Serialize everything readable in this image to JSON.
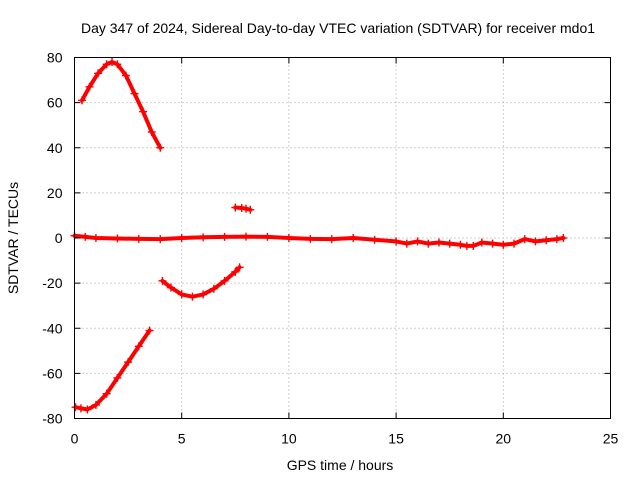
{
  "chart_data": {
    "type": "scatter",
    "title": "Day 347 of 2024, Sidereal Day-to-day VTEC variation (SDTVAR) for receiver mdo1",
    "xlabel": "GPS time / hours",
    "ylabel": "SDTVAR / TECUs",
    "xlim": [
      0,
      25
    ],
    "ylim": [
      -80,
      80
    ],
    "xticks": [
      0,
      5,
      10,
      15,
      20,
      25
    ],
    "yticks": [
      -80,
      -60,
      -40,
      -20,
      0,
      20,
      40,
      60,
      80
    ],
    "grid": true,
    "color": "#ff0000",
    "series": [
      {
        "name": "main-near-zero",
        "x": [
          0,
          0.5,
          1,
          2,
          3,
          4,
          5,
          6,
          7,
          8,
          9,
          10,
          11,
          12,
          13,
          14,
          15,
          15.5,
          16,
          16.5,
          17,
          17.5,
          18,
          18.3,
          18.6,
          19,
          19.5,
          20,
          20.5,
          21,
          21.5,
          22,
          22.5,
          22.8
        ],
        "y": [
          1,
          0.5,
          0,
          -0.2,
          -0.4,
          -0.5,
          0,
          0.3,
          0.5,
          0.6,
          0.5,
          0,
          -0.4,
          -0.5,
          0,
          -0.8,
          -1.5,
          -2.5,
          -1.5,
          -2.5,
          -2,
          -2.5,
          -3,
          -3.5,
          -3.5,
          -2,
          -2.5,
          -3,
          -2.5,
          -0.5,
          -1.5,
          -1,
          -0.5,
          0
        ]
      },
      {
        "name": "arc-upper",
        "x": [
          0.35,
          0.7,
          1.1,
          1.5,
          1.75,
          2.0,
          2.4,
          2.8,
          3.2,
          3.6,
          4.0
        ],
        "y": [
          61,
          67,
          73,
          77,
          78,
          77,
          72,
          64,
          56,
          47,
          40
        ]
      },
      {
        "name": "arc-lower",
        "x": [
          0.05,
          0.3,
          0.6,
          1.0,
          1.5,
          2.0,
          2.5,
          3.0,
          3.5
        ],
        "y": [
          -75,
          -75.5,
          -76,
          -74,
          -69,
          -62,
          -55,
          -48,
          -41
        ]
      },
      {
        "name": "arc-middle",
        "x": [
          4.1,
          4.5,
          5.0,
          5.5,
          6.0,
          6.5,
          7.0,
          7.5,
          7.7
        ],
        "y": [
          -19,
          -22,
          -25,
          -26,
          -25,
          -22.5,
          -19,
          -15,
          -13
        ]
      },
      {
        "name": "fragment",
        "x": [
          7.5,
          7.8,
          8.0,
          8.2
        ],
        "y": [
          13.5,
          13.3,
          13,
          12.5
        ]
      }
    ]
  }
}
